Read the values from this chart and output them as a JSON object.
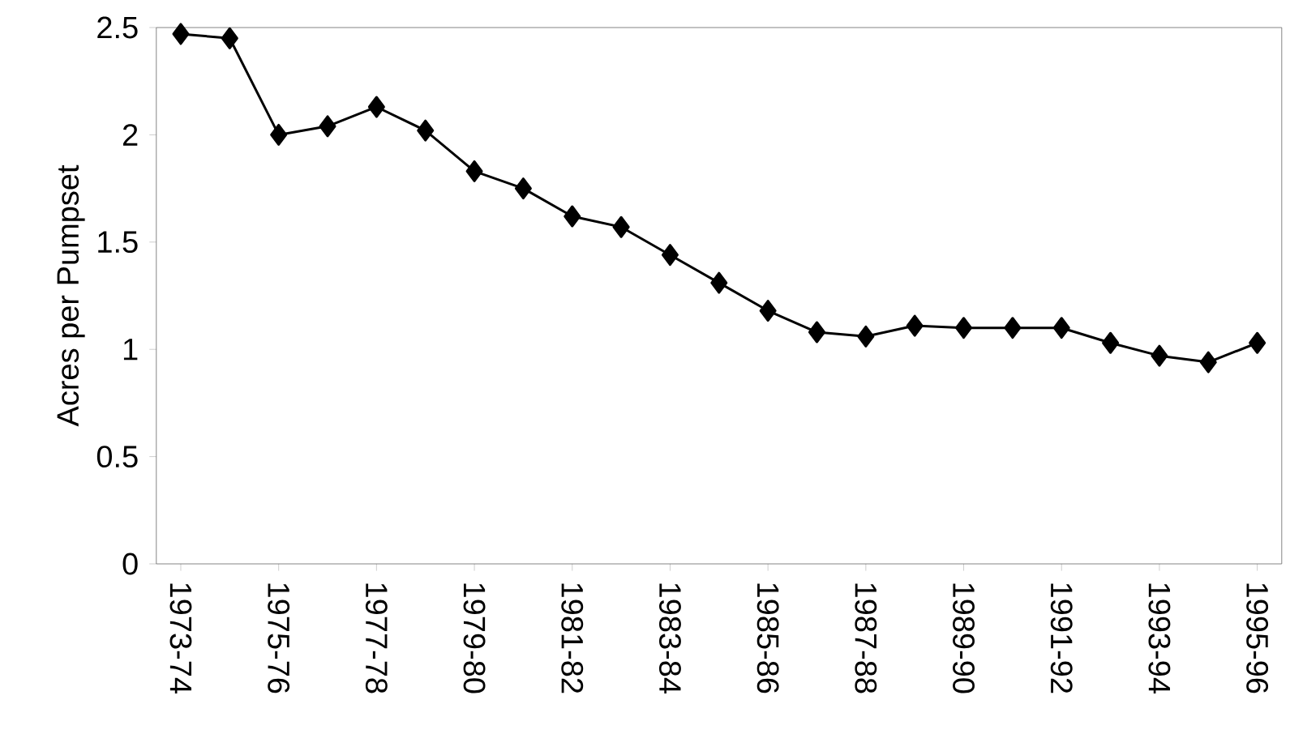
{
  "chart_data": {
    "type": "line",
    "ylabel": "Acres per Pumpset",
    "categories": [
      "1973-74",
      null,
      "1975-76",
      null,
      "1977-78",
      null,
      "1979-80",
      null,
      "1981-82",
      null,
      "1983-84",
      null,
      "1985-86",
      null,
      "1987-88",
      null,
      "1989-90",
      null,
      "1991-92",
      null,
      "1993-94",
      null,
      "1995-96"
    ],
    "series": [
      {
        "color": "#000000",
        "values": [
          2.47,
          2.45,
          2.0,
          2.04,
          2.13,
          2.02,
          1.83,
          1.75,
          1.62,
          1.57,
          1.44,
          1.31,
          1.18,
          1.08,
          1.06,
          1.11,
          1.1,
          1.1,
          1.1,
          1.03,
          0.97,
          0.94,
          1.03
        ]
      }
    ],
    "ylim": [
      0,
      2.5
    ],
    "yticks": [
      0,
      0.5,
      1,
      1.5,
      2,
      2.5
    ],
    "marker": "diamond",
    "line_style": "solid"
  }
}
